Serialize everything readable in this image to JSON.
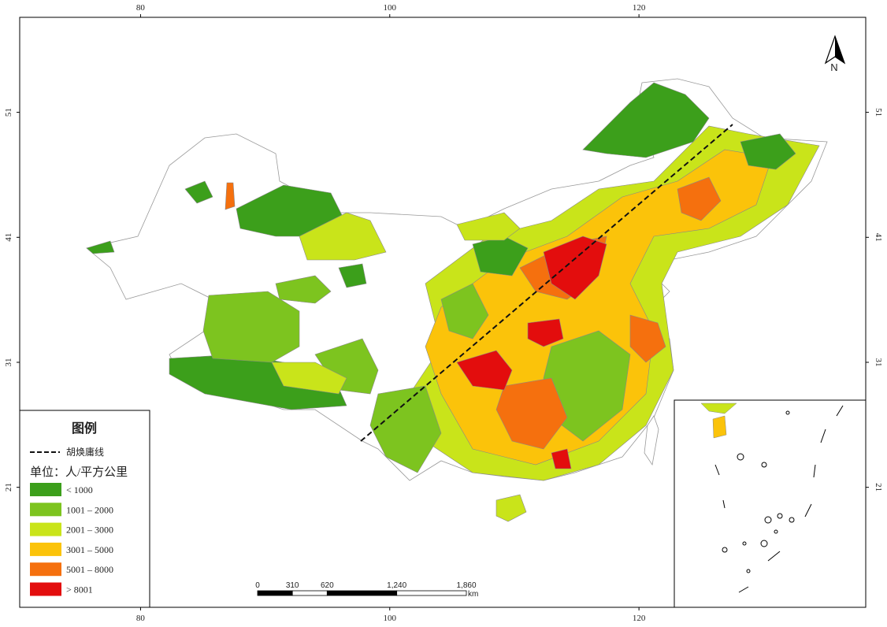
{
  "map": {
    "lon_ticks": [
      80,
      100,
      120
    ],
    "lat_ticks": [
      51,
      41,
      31,
      21
    ],
    "lon_range": [
      70.3,
      138.2
    ],
    "lat_range": [
      58.6,
      11.4
    ],
    "north_label": "N",
    "legend": {
      "title": "图例",
      "line_label": "胡焕庸线",
      "unit": "单位：人/平方公里",
      "classes": [
        {
          "label": "< 1000",
          "color": "#3c9f1b"
        },
        {
          "label": "1001 – 2000",
          "color": "#7dc41f"
        },
        {
          "label": "2001 – 3000",
          "color": "#c9e41a"
        },
        {
          "label": "3001 – 5000",
          "color": "#fbc30a"
        },
        {
          "label": "5001 – 8000",
          "color": "#f5700e"
        },
        {
          "label": "> 8001",
          "color": "#e30d0d"
        }
      ]
    },
    "scale_bar": {
      "ticks": [
        0,
        310,
        620,
        {
          "value": 1240,
          "label": "1,240"
        },
        {
          "value": 1860,
          "label": "1,860"
        }
      ],
      "unit": "km"
    }
  }
}
